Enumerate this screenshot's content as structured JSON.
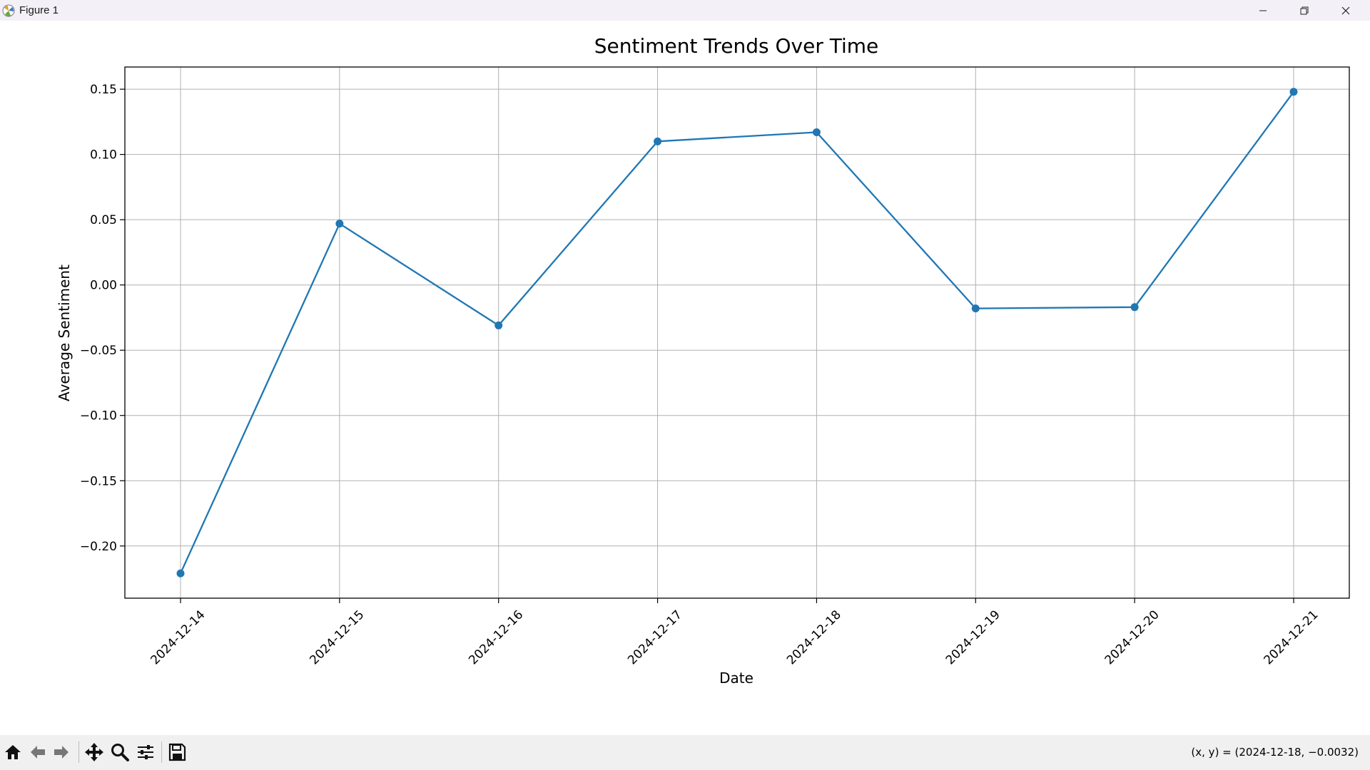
{
  "window": {
    "title": "Figure 1",
    "icon": "matplotlib-icon",
    "controls": [
      "minimize-icon",
      "restore-icon",
      "close-icon"
    ]
  },
  "toolbar": {
    "buttons": [
      "home-icon",
      "back-icon",
      "forward-icon",
      "pan-icon",
      "zoom-icon",
      "configure-subplots-icon",
      "save-icon"
    ],
    "coords": "(x, y) = (2024-12-18, −0.0032)"
  },
  "chart_data": {
    "type": "line",
    "title": "Sentiment Trends Over Time",
    "xlabel": "Date",
    "ylabel": "Average Sentiment",
    "x": [
      "2024-12-14",
      "2024-12-15",
      "2024-12-16",
      "2024-12-17",
      "2024-12-18",
      "2024-12-19",
      "2024-12-20",
      "2024-12-21"
    ],
    "series": [
      {
        "values": [
          -0.221,
          0.047,
          -0.031,
          0.11,
          0.117,
          -0.018,
          -0.017,
          0.148
        ]
      }
    ],
    "ylim": [
      -0.24,
      0.167
    ],
    "xlim": [
      "2024-12-13",
      "2024-12-21"
    ],
    "yticks": [
      0.15,
      0.1,
      0.05,
      0.0,
      -0.05,
      -0.1,
      -0.15,
      -0.2
    ],
    "ytick_labels": [
      "0.15",
      "0.10",
      "0.05",
      "0.00",
      "−0.05",
      "−0.10",
      "−0.15",
      "−0.20"
    ],
    "xtick_labels": [
      "2024-12-14",
      "2024-12-15",
      "2024-12-16",
      "2024-12-17",
      "2024-12-18",
      "2024-12-19",
      "2024-12-20",
      "2024-12-21"
    ],
    "grid": true,
    "marker": "circle",
    "line_color": "#1f77b4"
  }
}
